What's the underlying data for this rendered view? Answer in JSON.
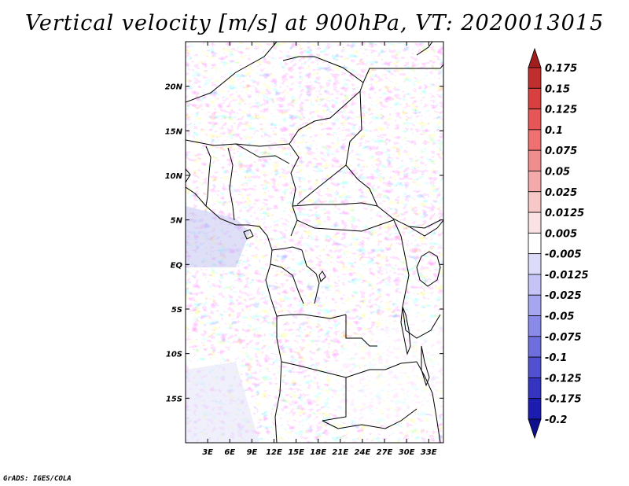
{
  "title": "Vertical velocity [m/s] at 900hPa, VT: 2020013015",
  "credit": "GrADS: IGES/COLA",
  "map": {
    "lon_range": [
      0,
      35
    ],
    "lat_range": [
      -20,
      25
    ],
    "lat_ticks": [
      {
        "value": 20,
        "label": "20N"
      },
      {
        "value": 15,
        "label": "15N"
      },
      {
        "value": 10,
        "label": "10N"
      },
      {
        "value": 5,
        "label": "5N"
      },
      {
        "value": 0,
        "label": "EQ"
      },
      {
        "value": -5,
        "label": "5S"
      },
      {
        "value": -10,
        "label": "10S"
      },
      {
        "value": -15,
        "label": "15S"
      }
    ],
    "lon_ticks": [
      {
        "value": 3,
        "label": "3E"
      },
      {
        "value": 6,
        "label": "6E"
      },
      {
        "value": 9,
        "label": "9E"
      },
      {
        "value": 12,
        "label": "12E"
      },
      {
        "value": 15,
        "label": "15E"
      },
      {
        "value": 18,
        "label": "18E"
      },
      {
        "value": 21,
        "label": "21E"
      },
      {
        "value": 24,
        "label": "24E"
      },
      {
        "value": 27,
        "label": "27E"
      },
      {
        "value": 30,
        "label": "30E"
      },
      {
        "value": 33,
        "label": "33E"
      }
    ]
  },
  "colorbar": {
    "labels": [
      "0.175",
      "0.15",
      "0.125",
      "0.1",
      "0.075",
      "0.05",
      "0.025",
      "0.0125",
      "0.005",
      "-0.005",
      "-0.0125",
      "-0.025",
      "-0.05",
      "-0.075",
      "-0.1",
      "-0.125",
      "-0.175",
      "-0.2"
    ],
    "colors": [
      "#a01e1e",
      "#c02e2e",
      "#d84040",
      "#e65656",
      "#ee7070",
      "#f08e8e",
      "#f4aaaa",
      "#f8c8c8",
      "#fbe2e2",
      "#ffffff",
      "#dcdcfa",
      "#c4c4f6",
      "#a6a6f0",
      "#8a8ae8",
      "#6e6edc",
      "#5050d0",
      "#3434c0",
      "#1c1cb0",
      "#10108e"
    ]
  }
}
